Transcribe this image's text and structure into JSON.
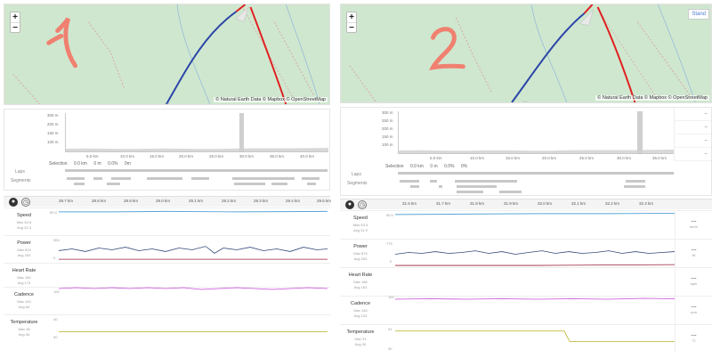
{
  "map": {
    "zoom_in": "+",
    "zoom_out": "−",
    "attribution": "© Natural Earth Data © Mapbox © OpenStreetMap",
    "style_button": "Stand"
  },
  "annotations": {
    "left_number": "1",
    "right_number": "2"
  },
  "left": {
    "overview": {
      "y_axis": [
        "300 m",
        "200 m",
        "150 m",
        "100 m"
      ],
      "x_axis": [
        "5.0 km",
        "10.0 km",
        "15.0 km",
        "20.0 km",
        "25.0 km",
        "30.0 km",
        "35.0 km",
        "40.0 km"
      ],
      "selection": {
        "label": "Selection",
        "values": [
          "0.0 km",
          "0 m",
          "0.0%",
          "0m"
        ]
      },
      "laps_label": "Laps",
      "segments_label": "Segments"
    },
    "ticks": [
      "28.7 km",
      "28.8 km",
      "28.9 km",
      "29.0 km",
      "29.1 km",
      "29.2 km",
      "29.3 km",
      "29.4 km",
      "29.5 km"
    ],
    "metrics": [
      {
        "name": "Speed",
        "max": "Max 52.8",
        "avg": "Avg 31.3",
        "ax_top": "50.0",
        "ax_bot": ""
      },
      {
        "name": "Power",
        "max": "Max 815",
        "avg": "Avg 203",
        "ax_top": "300",
        "ax_bot": "0"
      },
      {
        "name": "Heart Rate",
        "max": "Max 180",
        "avg": "Avg 174",
        "ax_top": "",
        "ax_bot": ""
      },
      {
        "name": "Cadence",
        "max": "Max 143",
        "avg": "Avg 84",
        "ax_top": "100",
        "ax_bot": ""
      },
      {
        "name": "Temperature",
        "max": "Max 38",
        "avg": "Avg 34",
        "ax_top": "40",
        "ax_bot": "30"
      }
    ]
  },
  "right": {
    "overview": {
      "y_axis": [
        "300 m",
        "250 m",
        "200 m",
        "150 m",
        "100 m"
      ],
      "x_axis": [
        "5.0 km",
        "10.0 km",
        "15.0 km",
        "20.0 km",
        "25.0 km",
        "30.0 km",
        "35.0 km"
      ],
      "selection": {
        "label": "Selection",
        "values": [
          "0.0 km",
          "0 m",
          "0.0%",
          "0%"
        ]
      },
      "laps_label": "Laps",
      "segments_label": "Segments",
      "side": [
        "--",
        "--",
        "--",
        "--"
      ]
    },
    "ticks": [
      "31.6 km",
      "31.7 km",
      "31.8 km",
      "31.9 km",
      "32.0 km",
      "32.1 km",
      "32.2 km",
      "32.3 km"
    ],
    "metrics": [
      {
        "name": "Speed",
        "max": "Max 53.4",
        "avg": "Avg 31.9",
        "ax_top": "50.0",
        "ax_bot": "",
        "side_value": "---",
        "unit": "km/h"
      },
      {
        "name": "Power",
        "max": "Max 870",
        "avg": "Avg 203",
        "ax_top": "775",
        "ax_bot": "0",
        "side_value": "---",
        "unit": "W"
      },
      {
        "name": "Heart Rate",
        "max": "Max 186",
        "avg": "Avg 163",
        "ax_top": "",
        "ax_bot": "",
        "side_value": "---",
        "unit": "bpm"
      },
      {
        "name": "Cadence",
        "max": "Max 144",
        "avg": "Avg 103",
        "ax_top": "100",
        "ax_bot": "",
        "side_value": "---",
        "unit": "rpm"
      },
      {
        "name": "Temperature",
        "max": "Max 31",
        "avg": "Avg 30",
        "ax_top": "31",
        "ax_bot": "30",
        "side_value": "---",
        "unit": "°C"
      }
    ]
  },
  "colors": {
    "map_bg": "#cfe7cf",
    "route_blue": "#2b45a8",
    "route_red": "#e02020",
    "annotation": "#f08070",
    "speed": "#5aa5d6",
    "power": "#34497a",
    "heart_rate": "#9a1f3a",
    "cadence": "#c64ad8",
    "temperature": "#b8b020"
  }
}
